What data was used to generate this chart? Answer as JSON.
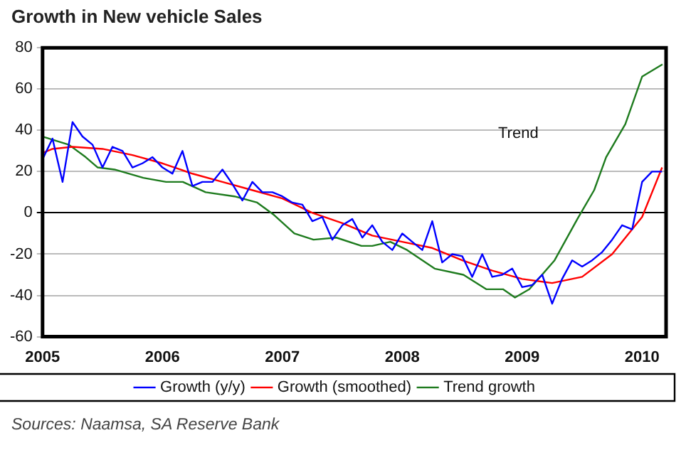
{
  "chart_data": {
    "type": "line",
    "title": "Growth in New vehicle Sales",
    "xlim": [
      2005,
      2010.2
    ],
    "xticks": [
      2005,
      2006,
      2007,
      2008,
      2009,
      2010
    ],
    "ylim": [
      -60,
      80
    ],
    "yticks": [
      -60,
      -40,
      -20,
      0,
      20,
      40,
      60,
      80
    ],
    "grid": "y",
    "legend": "bottom",
    "marker": "none",
    "line_style": "solid",
    "annotations": [
      "Trend",
      "Sources: Naamsa, SA Reserve Bank"
    ],
    "series": [
      {
        "name": "Growth (y/y)",
        "color": "#0000ff",
        "x": [
          2005,
          2005.083,
          2005.167,
          2005.25,
          2005.333,
          2005.417,
          2005.5,
          2005.583,
          2005.667,
          2005.75,
          2005.833,
          2005.917,
          2006,
          2006.083,
          2006.167,
          2006.25,
          2006.333,
          2006.417,
          2006.5,
          2006.583,
          2006.667,
          2006.75,
          2006.833,
          2006.917,
          2007,
          2007.083,
          2007.167,
          2007.25,
          2007.333,
          2007.417,
          2007.5,
          2007.583,
          2007.667,
          2007.75,
          2007.833,
          2007.917,
          2008,
          2008.083,
          2008.167,
          2008.25,
          2008.333,
          2008.417,
          2008.5,
          2008.583,
          2008.667,
          2008.75,
          2008.833,
          2008.917,
          2009,
          2009.083,
          2009.167,
          2009.25,
          2009.333,
          2009.417,
          2009.5,
          2009.583,
          2009.667,
          2009.75,
          2009.833,
          2009.917,
          2010,
          2010.083,
          2010.167
        ],
        "values": [
          26,
          36,
          15,
          44,
          37,
          33,
          22,
          32,
          30,
          22,
          24,
          27,
          22,
          19,
          30,
          13,
          15,
          15,
          21,
          14,
          6,
          15,
          10,
          10,
          8,
          5,
          4,
          -4,
          -2,
          -13,
          -6,
          -3,
          -12,
          -6,
          -14,
          -18,
          -10,
          -14,
          -18,
          -4,
          -24,
          -20,
          -21,
          -31,
          -20,
          -31,
          -30,
          -27,
          -36,
          -35,
          -30,
          -44,
          -32,
          -23,
          -26,
          -23,
          -19,
          -13,
          -6,
          -8,
          15,
          20,
          20
        ]
      },
      {
        "name": "Growth (smoothed)",
        "color": "#ff0000",
        "x": [
          2005,
          2005.083,
          2005.25,
          2005.5,
          2005.75,
          2006,
          2006.25,
          2006.5,
          2006.75,
          2007,
          2007.25,
          2007.5,
          2007.75,
          2008,
          2008.25,
          2008.5,
          2008.75,
          2009,
          2009.25,
          2009.5,
          2009.75,
          2010,
          2010.167
        ],
        "values": [
          29,
          31,
          32,
          31,
          28,
          24,
          19,
          15,
          11,
          7,
          0,
          -5,
          -11,
          -14,
          -17,
          -23,
          -28,
          -32,
          -34,
          -31,
          -20,
          -2,
          22
        ]
      },
      {
        "name": "Trend growth",
        "color": "#1e7b1e",
        "x": [
          2005,
          2005.22,
          2005.36,
          2005.46,
          2005.6,
          2005.84,
          2006.03,
          2006.17,
          2006.36,
          2006.6,
          2006.79,
          2006.93,
          2007.1,
          2007.26,
          2007.45,
          2007.66,
          2007.75,
          2007.9,
          2008.04,
          2008.27,
          2008.51,
          2008.7,
          2008.84,
          2008.94,
          2009.06,
          2009.27,
          2009.46,
          2009.6,
          2009.7,
          2009.86,
          2010,
          2010.17
        ],
        "values": [
          37,
          33,
          27,
          22,
          21,
          17,
          15,
          15,
          10,
          8,
          5,
          -1,
          -10,
          -13,
          -12,
          -16,
          -16,
          -14,
          -18,
          -27,
          -30,
          -37,
          -37,
          -41,
          -37,
          -23,
          -3,
          11,
          27,
          43,
          66,
          72
        ]
      }
    ]
  }
}
